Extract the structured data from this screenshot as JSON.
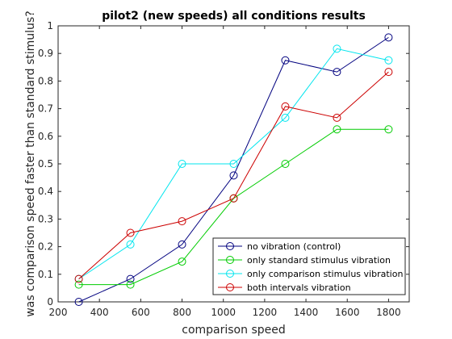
{
  "chart_data": {
    "type": "line",
    "title": "pilot2 (new speeds) all conditions results",
    "xlabel": "comparison speed",
    "ylabel": "was comparison speed faster than standard stimulus?",
    "xlim": [
      200,
      1900
    ],
    "ylim": [
      0,
      1
    ],
    "xticks": [
      200,
      400,
      600,
      800,
      1000,
      1200,
      1400,
      1600,
      1800
    ],
    "yticks": [
      0,
      0.1,
      0.2,
      0.3,
      0.4,
      0.5,
      0.6,
      0.7,
      0.8,
      0.9,
      1
    ],
    "ytick_labels": [
      "0",
      "0.1",
      "0.2",
      "0.3",
      "0.4",
      "0.5",
      "0.6",
      "0.7",
      "0.8",
      "0.9",
      "1"
    ],
    "x": [
      300,
      550,
      800,
      1050,
      1300,
      1550,
      1800
    ],
    "grid": false,
    "legend_position": "bottom-right",
    "marker": "circle-open",
    "series": [
      {
        "name": "no vibration (control)",
        "color": "#00007f",
        "values": [
          0.0,
          0.083,
          0.208,
          0.458,
          0.875,
          0.833,
          0.958
        ]
      },
      {
        "name": "only standard stimulus vibration",
        "color": "#00cc00",
        "values": [
          0.0625,
          0.0625,
          0.146,
          0.375,
          0.5,
          0.625,
          0.625
        ]
      },
      {
        "name": "only comparison stimulus vibration",
        "color": "#00e5ee",
        "values": [
          0.083,
          0.208,
          0.5,
          0.5,
          0.667,
          0.917,
          0.875
        ]
      },
      {
        "name": "both intervals vibration",
        "color": "#cc0000",
        "values": [
          0.083,
          0.25,
          0.292,
          0.375,
          0.708,
          0.667,
          0.833
        ]
      }
    ]
  }
}
